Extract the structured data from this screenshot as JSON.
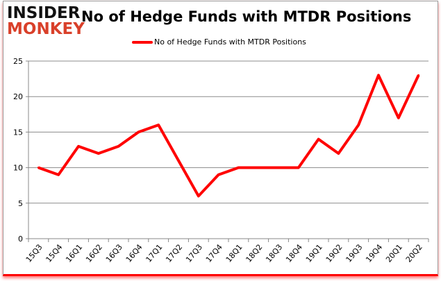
{
  "logo": {
    "line1": "INSIDER",
    "line2": "MONKEY"
  },
  "chart_data": {
    "type": "line",
    "title": "No of Hedge Funds with MTDR Positions",
    "categories": [
      "15Q3",
      "15Q4",
      "16Q1",
      "16Q2",
      "16Q3",
      "16Q4",
      "17Q1",
      "17Q2",
      "17Q3",
      "17Q4",
      "18Q1",
      "18Q2",
      "18Q3",
      "18Q4",
      "19Q1",
      "19Q2",
      "19Q3",
      "19Q4",
      "20Q1",
      "20Q2"
    ],
    "series": [
      {
        "name": "No of Hedge Funds with MTDR Positions",
        "color": "#ff0000",
        "values": [
          10,
          9,
          13,
          12,
          13,
          15,
          16,
          11,
          6,
          9,
          10,
          10,
          10,
          10,
          14,
          12,
          16,
          23,
          17,
          23
        ]
      }
    ],
    "ylim": [
      0,
      25
    ],
    "yticks": [
      0,
      5,
      10,
      15,
      20,
      25
    ],
    "grid": true,
    "legend": "top-center",
    "xlabel": "",
    "ylabel": ""
  }
}
